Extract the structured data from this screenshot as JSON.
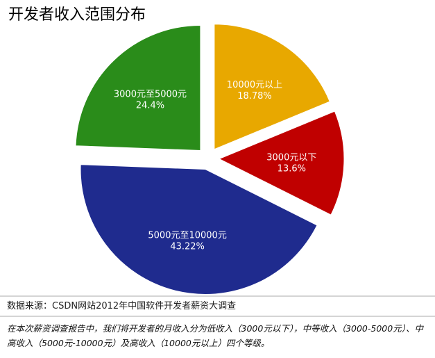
{
  "chart_data": {
    "type": "pie",
    "title": "开发者收入范围分布",
    "categories": [
      "10000元以上",
      "3000元以下",
      "5000元至10000元",
      "3000元至5000元"
    ],
    "values": [
      18.78,
      13.6,
      43.22,
      24.4
    ],
    "value_labels": [
      "18.78%",
      "13.6%",
      "43.22%",
      "24.4%"
    ],
    "colors": [
      "#e8a800",
      "#c00000",
      "#1f2b8e",
      "#2a8c1a"
    ],
    "source": "数据来源：CSDN网站2012年中国软件开发者薪资大调查",
    "note": "在本次薪资调查报告中，我们将开发者的月收入分为低收入（3000元以下），中等收入（3000-5000元）、中高收入（5000元-10000元）及高收入（10000元以上）四个等级。"
  }
}
